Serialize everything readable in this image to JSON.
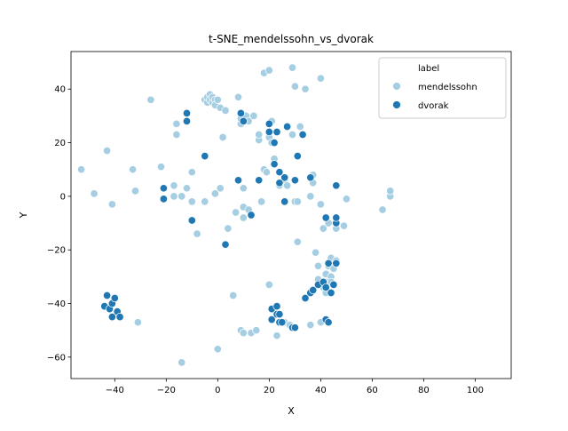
{
  "chart_data": {
    "type": "scatter",
    "title": "t-SNE_mendelssohn_vs_dvorak",
    "xlabel": "X",
    "ylabel": "Y",
    "xlim": [
      -57,
      114
    ],
    "ylim": [
      -68,
      54
    ],
    "xticks": [
      -40,
      -20,
      0,
      20,
      40,
      60,
      80,
      100
    ],
    "yticks": [
      -60,
      -40,
      -20,
      0,
      20,
      40
    ],
    "grid": false,
    "legend": {
      "title": "label",
      "placement": "upper-right",
      "entries": [
        "mendelssohn",
        "dvorak"
      ]
    },
    "series": [
      {
        "name": "mendelssohn",
        "color": "#a6cee3",
        "points": [
          [
            -53,
            10
          ],
          [
            -48,
            1
          ],
          [
            -43,
            17
          ],
          [
            -41,
            -3
          ],
          [
            -33,
            10
          ],
          [
            -32,
            2
          ],
          [
            -31,
            -47
          ],
          [
            -26,
            36
          ],
          [
            -22,
            11
          ],
          [
            -17,
            0
          ],
          [
            -17,
            4
          ],
          [
            -16,
            23
          ],
          [
            -16,
            27
          ],
          [
            -14,
            0
          ],
          [
            -12,
            3
          ],
          [
            -10,
            -2
          ],
          [
            -10,
            9
          ],
          [
            -8,
            -14
          ],
          [
            -5,
            -2
          ],
          [
            -5,
            36
          ],
          [
            -4,
            35
          ],
          [
            -4,
            37
          ],
          [
            -3,
            38
          ],
          [
            -3,
            36
          ],
          [
            -2,
            35
          ],
          [
            -2,
            37
          ],
          [
            -1,
            36
          ],
          [
            -1,
            34
          ],
          [
            -1,
            1
          ],
          [
            0,
            36
          ],
          [
            0,
            -57
          ],
          [
            1,
            3
          ],
          [
            1,
            33
          ],
          [
            2,
            22
          ],
          [
            3,
            32
          ],
          [
            4,
            -12
          ],
          [
            6,
            -37
          ],
          [
            7,
            -6
          ],
          [
            8,
            37
          ],
          [
            9,
            -50
          ],
          [
            9,
            27
          ],
          [
            9,
            29
          ],
          [
            10,
            -4
          ],
          [
            10,
            -51
          ],
          [
            10,
            3
          ],
          [
            10,
            -8
          ],
          [
            11,
            30
          ],
          [
            12,
            28
          ],
          [
            12,
            -5
          ],
          [
            13,
            -51
          ],
          [
            14,
            30
          ],
          [
            15,
            -50
          ],
          [
            16,
            21
          ],
          [
            16,
            23
          ],
          [
            17,
            -2
          ],
          [
            18,
            10
          ],
          [
            18,
            46
          ],
          [
            19,
            9
          ],
          [
            20,
            -33
          ],
          [
            20,
            47
          ],
          [
            20,
            22
          ],
          [
            21,
            20
          ],
          [
            21,
            28
          ],
          [
            22,
            14
          ],
          [
            23,
            -52
          ],
          [
            24,
            4
          ],
          [
            26,
            -47
          ],
          [
            26,
            6
          ],
          [
            27,
            4
          ],
          [
            27,
            26
          ],
          [
            28,
            -48
          ],
          [
            29,
            48
          ],
          [
            29,
            23
          ],
          [
            30,
            41
          ],
          [
            30,
            -2
          ],
          [
            31,
            -2
          ],
          [
            31,
            -17
          ],
          [
            32,
            26
          ],
          [
            34,
            40
          ],
          [
            36,
            -48
          ],
          [
            36,
            0
          ],
          [
            37,
            8
          ],
          [
            37,
            5
          ],
          [
            38,
            -21
          ],
          [
            39,
            -26
          ],
          [
            39,
            -31
          ],
          [
            40,
            -33
          ],
          [
            40,
            -47
          ],
          [
            40,
            44
          ],
          [
            40,
            -3
          ],
          [
            41,
            -12
          ],
          [
            41,
            -34
          ],
          [
            42,
            -29
          ],
          [
            42,
            -32
          ],
          [
            42,
            -36
          ],
          [
            43,
            -10
          ],
          [
            43,
            -26
          ],
          [
            44,
            -23
          ],
          [
            44,
            -30
          ],
          [
            44,
            -32
          ],
          [
            45,
            -27
          ],
          [
            46,
            -24
          ],
          [
            46,
            -12
          ],
          [
            49,
            -11
          ],
          [
            50,
            -1
          ],
          [
            64,
            -5
          ],
          [
            67,
            0
          ],
          [
            67,
            2
          ],
          [
            -14,
            -62
          ]
        ]
      },
      {
        "name": "dvorak",
        "color": "#1f78b4",
        "points": [
          [
            -44,
            -41
          ],
          [
            -43,
            -37
          ],
          [
            -42,
            -42
          ],
          [
            -41,
            -40
          ],
          [
            -41,
            -45
          ],
          [
            -40,
            -38
          ],
          [
            -39,
            -43
          ],
          [
            -38,
            -45
          ],
          [
            -21,
            3
          ],
          [
            -21,
            -1
          ],
          [
            -12,
            31
          ],
          [
            -12,
            28
          ],
          [
            -10,
            -9
          ],
          [
            -5,
            15
          ],
          [
            3,
            -18
          ],
          [
            8,
            6
          ],
          [
            9,
            31
          ],
          [
            10,
            28
          ],
          [
            13,
            -7
          ],
          [
            16,
            6
          ],
          [
            20,
            27
          ],
          [
            20,
            24
          ],
          [
            21,
            -42
          ],
          [
            21,
            -46
          ],
          [
            22,
            12
          ],
          [
            22,
            20
          ],
          [
            23,
            -41
          ],
          [
            23,
            -44
          ],
          [
            23,
            24
          ],
          [
            24,
            -44
          ],
          [
            24,
            -47
          ],
          [
            24,
            9
          ],
          [
            24,
            5
          ],
          [
            25,
            -47
          ],
          [
            26,
            -2
          ],
          [
            26,
            7
          ],
          [
            27,
            26
          ],
          [
            29,
            -49
          ],
          [
            30,
            -49
          ],
          [
            30,
            6
          ],
          [
            31,
            15
          ],
          [
            33,
            23
          ],
          [
            34,
            -38
          ],
          [
            36,
            7
          ],
          [
            36,
            -36
          ],
          [
            37,
            -35
          ],
          [
            39,
            -33
          ],
          [
            41,
            -32
          ],
          [
            42,
            -8
          ],
          [
            42,
            -34
          ],
          [
            42,
            -46
          ],
          [
            43,
            -25
          ],
          [
            43,
            -47
          ],
          [
            44,
            -36
          ],
          [
            45,
            -33
          ],
          [
            46,
            -10
          ],
          [
            46,
            -8
          ],
          [
            46,
            -25
          ],
          [
            46,
            4
          ]
        ]
      }
    ]
  }
}
